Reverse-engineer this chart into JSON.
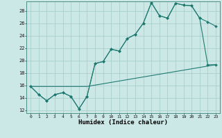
{
  "xlabel": "Humidex (Indice chaleur)",
  "background_color": "#cce8e6",
  "grid_color": "#aacfcc",
  "line_color": "#1e7a70",
  "xlim": [
    -0.5,
    23.5
  ],
  "ylim": [
    11.5,
    29.5
  ],
  "xticks": [
    0,
    1,
    2,
    3,
    4,
    5,
    6,
    7,
    8,
    9,
    10,
    11,
    12,
    13,
    14,
    15,
    16,
    17,
    18,
    19,
    20,
    21,
    22,
    23
  ],
  "yticks": [
    12,
    14,
    16,
    18,
    20,
    22,
    24,
    26,
    28
  ],
  "line1_x": [
    0,
    1,
    2,
    3,
    4,
    5,
    6,
    7,
    8,
    9,
    10,
    11,
    12,
    13,
    14,
    15,
    16,
    17,
    18,
    19,
    20,
    21,
    22,
    23
  ],
  "line1_y": [
    15.8,
    14.5,
    13.5,
    14.5,
    14.8,
    14.2,
    12.2,
    14.2,
    19.5,
    19.8,
    21.8,
    21.5,
    23.5,
    24.2,
    26.0,
    29.3,
    27.2,
    26.8,
    29.2,
    28.9,
    28.8,
    26.8,
    26.2,
    25.5
  ],
  "line2_x": [
    0,
    1,
    2,
    3,
    4,
    5,
    6,
    7,
    8,
    9,
    10,
    11,
    12,
    13,
    14,
    15,
    16,
    17,
    18,
    19,
    20,
    21,
    22,
    23
  ],
  "line2_y": [
    15.8,
    14.5,
    13.5,
    14.5,
    14.8,
    14.2,
    12.2,
    14.2,
    19.5,
    19.8,
    21.8,
    21.5,
    23.5,
    24.2,
    26.0,
    29.3,
    27.2,
    26.8,
    29.2,
    28.9,
    28.8,
    26.8,
    19.3,
    19.3
  ],
  "line3_x": [
    0,
    7,
    23
  ],
  "line3_y": [
    15.8,
    15.8,
    19.3
  ]
}
